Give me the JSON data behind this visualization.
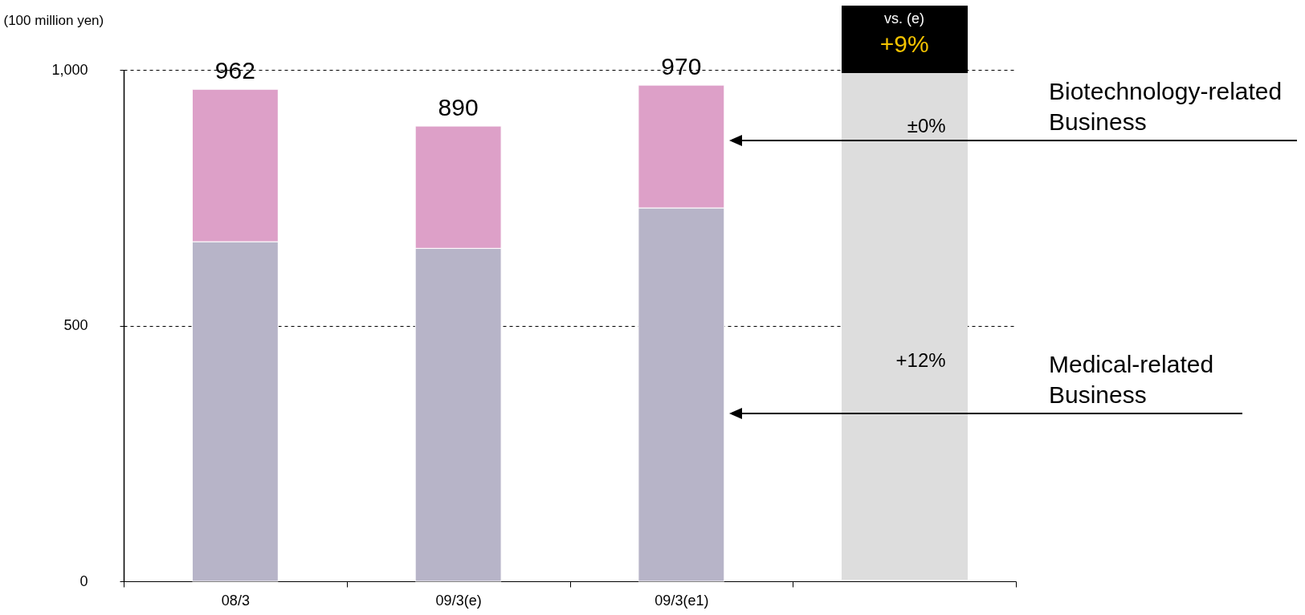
{
  "chart_data": {
    "type": "bar",
    "stacked": true,
    "ylabel": "(100 million yen)",
    "categories": [
      "08/3",
      "09/3(e)",
      "09/3(e1)",
      null
    ],
    "series": [
      {
        "name": "Medical-related Business",
        "color": "#b7b4c8",
        "values": [
          664,
          651,
          730,
          null
        ]
      },
      {
        "name": "Biotechnology-related Business",
        "color": "#dda0c8",
        "values": [
          298,
          239,
          240,
          null
        ]
      }
    ],
    "totals": [
      "962",
      "890",
      "970",
      null
    ],
    "ylim": [
      0,
      1000
    ],
    "yticks": [
      0,
      500,
      {
        "value": 1000,
        "label": "1,000"
      }
    ],
    "grid": "y",
    "legend": false,
    "annotations": [
      "vs. (e)",
      "+9%",
      "±0%",
      "+12%"
    ]
  }
}
